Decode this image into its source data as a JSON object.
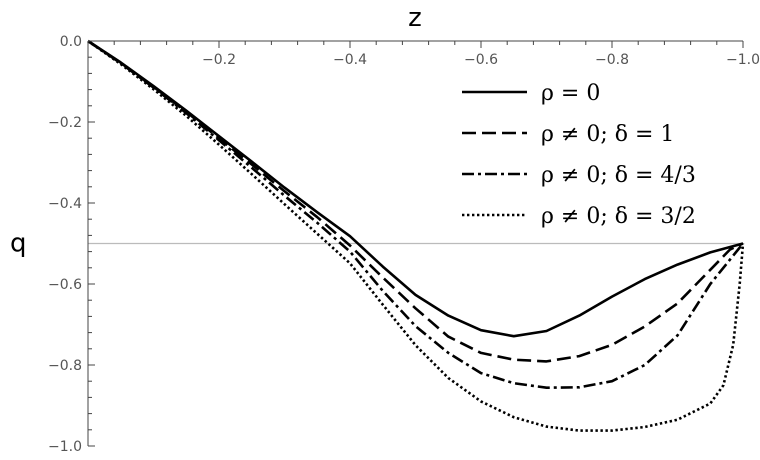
{
  "chart_data": {
    "type": "line",
    "xlabel": "z",
    "ylabel": "q",
    "xlim": [
      0,
      -1.0
    ],
    "ylim": [
      -1.0,
      0.0
    ],
    "x_axis_position": "top",
    "x_ticks": [
      -0.2,
      -0.4,
      -0.6,
      -0.8,
      -1.0
    ],
    "x_tick_labels": [
      "−0.2",
      "−0.4",
      "−0.6",
      "−0.8",
      "−1.0"
    ],
    "y_ticks": [
      0.0,
      -0.2,
      -0.4,
      -0.6,
      -0.8,
      -1.0
    ],
    "y_tick_labels": [
      "0.0",
      "−0.2",
      "−0.4",
      "−0.6",
      "−0.8",
      "−1.0"
    ],
    "reference_line": {
      "y": -0.5,
      "color": "#bbbbbb"
    },
    "grid": false,
    "legend_position": "top-right",
    "series": [
      {
        "name": "ρ = 0",
        "style": "solid",
        "points": [
          [
            0,
            0
          ],
          [
            -0.05,
            -0.053
          ],
          [
            -0.1,
            -0.111
          ],
          [
            -0.15,
            -0.172
          ],
          [
            -0.2,
            -0.235
          ],
          [
            -0.25,
            -0.298
          ],
          [
            -0.3,
            -0.362
          ],
          [
            -0.35,
            -0.423
          ],
          [
            -0.4,
            -0.482
          ],
          [
            -0.45,
            -0.557
          ],
          [
            -0.5,
            -0.627
          ],
          [
            -0.55,
            -0.678
          ],
          [
            -0.6,
            -0.714
          ],
          [
            -0.65,
            -0.729
          ],
          [
            -0.7,
            -0.716
          ],
          [
            -0.75,
            -0.678
          ],
          [
            -0.8,
            -0.631
          ],
          [
            -0.85,
            -0.588
          ],
          [
            -0.9,
            -0.552
          ],
          [
            -0.95,
            -0.522
          ],
          [
            -1.0,
            -0.5
          ]
        ]
      },
      {
        "name": "ρ ≠ 0;  δ = 1",
        "style": "dashed",
        "points": [
          [
            0,
            0
          ],
          [
            -0.05,
            -0.054
          ],
          [
            -0.1,
            -0.113
          ],
          [
            -0.15,
            -0.175
          ],
          [
            -0.2,
            -0.24
          ],
          [
            -0.25,
            -0.305
          ],
          [
            -0.3,
            -0.371
          ],
          [
            -0.35,
            -0.435
          ],
          [
            -0.4,
            -0.505
          ],
          [
            -0.45,
            -0.584
          ],
          [
            -0.5,
            -0.66
          ],
          [
            -0.55,
            -0.73
          ],
          [
            -0.6,
            -0.77
          ],
          [
            -0.65,
            -0.787
          ],
          [
            -0.7,
            -0.791
          ],
          [
            -0.75,
            -0.778
          ],
          [
            -0.8,
            -0.75
          ],
          [
            -0.85,
            -0.705
          ],
          [
            -0.9,
            -0.648
          ],
          [
            -0.95,
            -0.565
          ],
          [
            -0.98,
            -0.515
          ],
          [
            -1.0,
            -0.5
          ]
        ]
      },
      {
        "name": "ρ ≠ 0;  δ = 4/3",
        "style": "dashdot",
        "points": [
          [
            0,
            0
          ],
          [
            -0.05,
            -0.055
          ],
          [
            -0.1,
            -0.115
          ],
          [
            -0.15,
            -0.178
          ],
          [
            -0.2,
            -0.245
          ],
          [
            -0.25,
            -0.313
          ],
          [
            -0.3,
            -0.382
          ],
          [
            -0.35,
            -0.449
          ],
          [
            -0.4,
            -0.52
          ],
          [
            -0.45,
            -0.617
          ],
          [
            -0.5,
            -0.704
          ],
          [
            -0.55,
            -0.77
          ],
          [
            -0.6,
            -0.82
          ],
          [
            -0.65,
            -0.845
          ],
          [
            -0.7,
            -0.856
          ],
          [
            -0.75,
            -0.855
          ],
          [
            -0.8,
            -0.84
          ],
          [
            -0.85,
            -0.8
          ],
          [
            -0.9,
            -0.727
          ],
          [
            -0.95,
            -0.6
          ],
          [
            -0.98,
            -0.54
          ],
          [
            -1.0,
            -0.5
          ]
        ]
      },
      {
        "name": "ρ ≠ 0;  δ = 3/2",
        "style": "dotted",
        "points": [
          [
            0,
            0
          ],
          [
            -0.05,
            -0.057
          ],
          [
            -0.1,
            -0.119
          ],
          [
            -0.15,
            -0.185
          ],
          [
            -0.2,
            -0.256
          ],
          [
            -0.25,
            -0.329
          ],
          [
            -0.3,
            -0.403
          ],
          [
            -0.35,
            -0.476
          ],
          [
            -0.4,
            -0.549
          ],
          [
            -0.45,
            -0.651
          ],
          [
            -0.5,
            -0.751
          ],
          [
            -0.55,
            -0.832
          ],
          [
            -0.6,
            -0.89
          ],
          [
            -0.65,
            -0.929
          ],
          [
            -0.7,
            -0.952
          ],
          [
            -0.75,
            -0.962
          ],
          [
            -0.8,
            -0.962
          ],
          [
            -0.85,
            -0.953
          ],
          [
            -0.9,
            -0.935
          ],
          [
            -0.95,
            -0.895
          ],
          [
            -0.97,
            -0.85
          ],
          [
            -0.985,
            -0.75
          ],
          [
            -0.995,
            -0.6
          ],
          [
            -1.0,
            -0.5
          ]
        ]
      }
    ]
  }
}
